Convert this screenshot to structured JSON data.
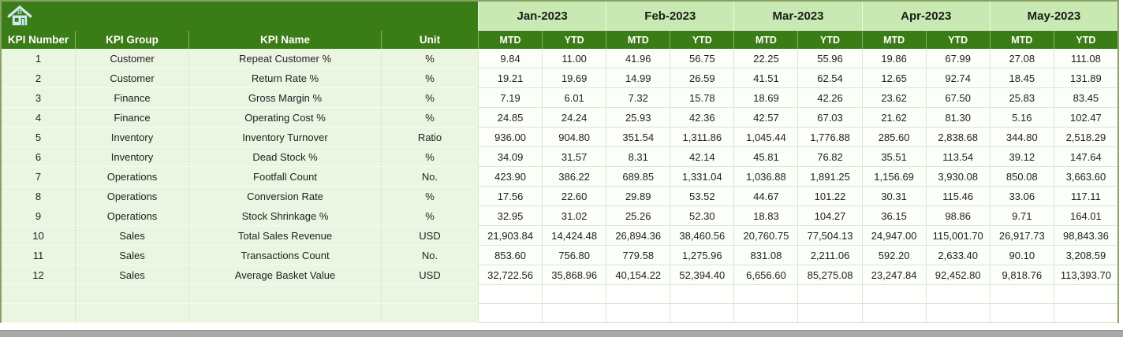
{
  "table": {
    "home_icon": "home",
    "left_headers": [
      "KPI Number",
      "KPI Group",
      "KPI Name",
      "Unit"
    ],
    "months": [
      "Jan-2023",
      "Feb-2023",
      "Mar-2023",
      "Apr-2023",
      "May-2023"
    ],
    "subheaders": [
      "MTD",
      "YTD"
    ],
    "rows": [
      {
        "number": "1",
        "group": "Customer",
        "name": "Repeat Customer %",
        "unit": "%",
        "values": [
          "9.84",
          "11.00",
          "41.96",
          "56.75",
          "22.25",
          "55.96",
          "19.86",
          "67.99",
          "27.08",
          "111.08"
        ]
      },
      {
        "number": "2",
        "group": "Customer",
        "name": "Return Rate %",
        "unit": "%",
        "values": [
          "19.21",
          "19.69",
          "14.99",
          "26.59",
          "41.51",
          "62.54",
          "12.65",
          "92.74",
          "18.45",
          "131.89"
        ]
      },
      {
        "number": "3",
        "group": "Finance",
        "name": "Gross Margin %",
        "unit": "%",
        "values": [
          "7.19",
          "6.01",
          "7.32",
          "15.78",
          "18.69",
          "42.26",
          "23.62",
          "67.50",
          "25.83",
          "83.45"
        ]
      },
      {
        "number": "4",
        "group": "Finance",
        "name": "Operating Cost %",
        "unit": "%",
        "values": [
          "24.85",
          "24.24",
          "25.93",
          "42.36",
          "42.57",
          "67.03",
          "21.62",
          "81.30",
          "5.16",
          "102.47"
        ]
      },
      {
        "number": "5",
        "group": "Inventory",
        "name": "Inventory Turnover",
        "unit": "Ratio",
        "values": [
          "936.00",
          "904.80",
          "351.54",
          "1,311.86",
          "1,045.44",
          "1,776.88",
          "285.60",
          "2,838.68",
          "344.80",
          "2,518.29"
        ]
      },
      {
        "number": "6",
        "group": "Inventory",
        "name": "Dead Stock %",
        "unit": "%",
        "values": [
          "34.09",
          "31.57",
          "8.31",
          "42.14",
          "45.81",
          "76.82",
          "35.51",
          "113.54",
          "39.12",
          "147.64"
        ]
      },
      {
        "number": "7",
        "group": "Operations",
        "name": "Footfall Count",
        "unit": "No.",
        "values": [
          "423.90",
          "386.22",
          "689.85",
          "1,331.04",
          "1,036.88",
          "1,891.25",
          "1,156.69",
          "3,930.08",
          "850.08",
          "3,663.60"
        ]
      },
      {
        "number": "8",
        "group": "Operations",
        "name": "Conversion Rate",
        "unit": "%",
        "values": [
          "17.56",
          "22.60",
          "29.89",
          "53.52",
          "44.67",
          "101.22",
          "30.31",
          "115.46",
          "33.06",
          "117.11"
        ]
      },
      {
        "number": "9",
        "group": "Operations",
        "name": "Stock Shrinkage %",
        "unit": "%",
        "values": [
          "32.95",
          "31.02",
          "25.26",
          "52.30",
          "18.83",
          "104.27",
          "36.15",
          "98.86",
          "9.71",
          "164.01"
        ]
      },
      {
        "number": "10",
        "group": "Sales",
        "name": "Total Sales Revenue",
        "unit": "USD",
        "values": [
          "21,903.84",
          "14,424.48",
          "26,894.36",
          "38,460.56",
          "20,760.75",
          "77,504.13",
          "24,947.00",
          "115,001.70",
          "26,917.73",
          "98,843.36"
        ]
      },
      {
        "number": "11",
        "group": "Sales",
        "name": "Transactions Count",
        "unit": "No.",
        "values": [
          "853.60",
          "756.80",
          "779.58",
          "1,275.96",
          "831.08",
          "2,211.06",
          "592.20",
          "2,633.40",
          "90.10",
          "3,208.59"
        ]
      },
      {
        "number": "12",
        "group": "Sales",
        "name": "Average Basket Value",
        "unit": "USD",
        "values": [
          "32,722.56",
          "35,868.96",
          "40,154.22",
          "52,394.40",
          "6,656.60",
          "85,275.08",
          "23,247.84",
          "92,452.80",
          "9,818.76",
          "113,393.70"
        ]
      }
    ],
    "empty_row_count": 2
  },
  "colors": {
    "header_green": "#3a7c15",
    "month_band_green": "#c8e9b2",
    "left_cell_green": "#eaf5e2",
    "data_cell": "#fcfef9",
    "grid_line": "#d9e9cc",
    "outer_border": "#87a263",
    "scrollbar_gray": "#a8a8a8",
    "home_icon_blue": "#cfe9f3"
  }
}
